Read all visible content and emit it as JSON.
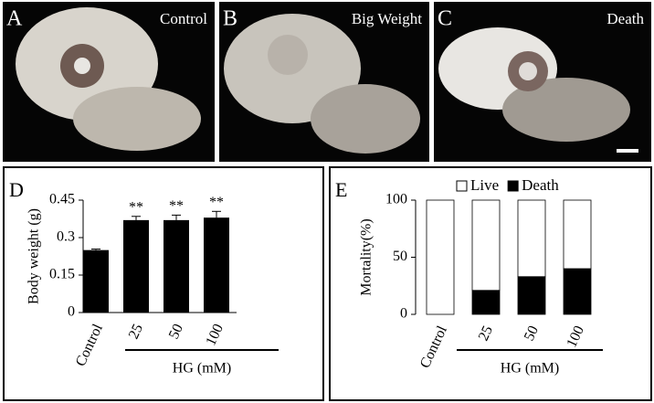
{
  "photos": [
    {
      "letter": "A",
      "label": "Control"
    },
    {
      "letter": "B",
      "label": "Big Weight"
    },
    {
      "letter": "C",
      "label": "Death"
    }
  ],
  "chart_data": [
    {
      "type": "bar",
      "letter": "D",
      "ylabel": "Body weight (g)",
      "xlabel": "HG (mM)",
      "categories": [
        "Control",
        "25",
        "50",
        "100"
      ],
      "values": [
        0.25,
        0.37,
        0.37,
        0.38
      ],
      "errors": [
        0.004,
        0.015,
        0.02,
        0.025
      ],
      "annotations": [
        null,
        "**",
        "**",
        "**"
      ],
      "color": "#000000",
      "ylim": [
        0,
        0.45
      ],
      "yticks": [
        0,
        0.15,
        0.3,
        0.45
      ]
    },
    {
      "type": "stacked_bar",
      "letter": "E",
      "ylabel": "Mortality(%)",
      "xlabel": "HG (mM)",
      "categories": [
        "Control",
        "25",
        "50",
        "100"
      ],
      "series": [
        {
          "name": "Death",
          "color": "#000000",
          "values": [
            0,
            21,
            33,
            40
          ]
        },
        {
          "name": "Live",
          "color": "#ffffff",
          "values": [
            100,
            79,
            67,
            60
          ]
        }
      ],
      "ylim": [
        0,
        100
      ],
      "yticks": [
        0,
        50,
        100
      ]
    }
  ]
}
